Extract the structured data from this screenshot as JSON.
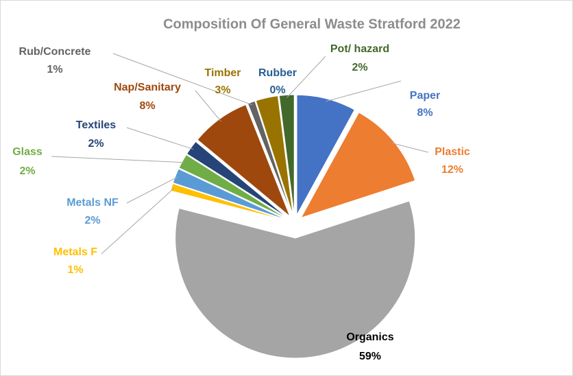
{
  "chart_data": {
    "type": "pie",
    "title": "Composition Of General Waste Stratford 2022",
    "categories": [
      "Paper",
      "Plastic",
      "Organics",
      "Metals F",
      "Metals NF",
      "Glass",
      "Textiles",
      "Nap/Sanitary",
      "Rub/Concrete",
      "Timber",
      "Rubber",
      "Pot/ hazard"
    ],
    "values": [
      8,
      12,
      59,
      1,
      2,
      2,
      2,
      8,
      1,
      3,
      0,
      2
    ],
    "value_labels": [
      "8%",
      "12%",
      "59%",
      "1%",
      "2%",
      "2%",
      "2%",
      "8%",
      "1%",
      "3%",
      "0%",
      "2%"
    ],
    "colors": [
      "#4472c4",
      "#ed7d31",
      "#a5a5a5",
      "#ffc000",
      "#5b9bd5",
      "#70ad47",
      "#264478",
      "#9e480e",
      "#636363",
      "#997300",
      "#255e91",
      "#43682b"
    ]
  }
}
